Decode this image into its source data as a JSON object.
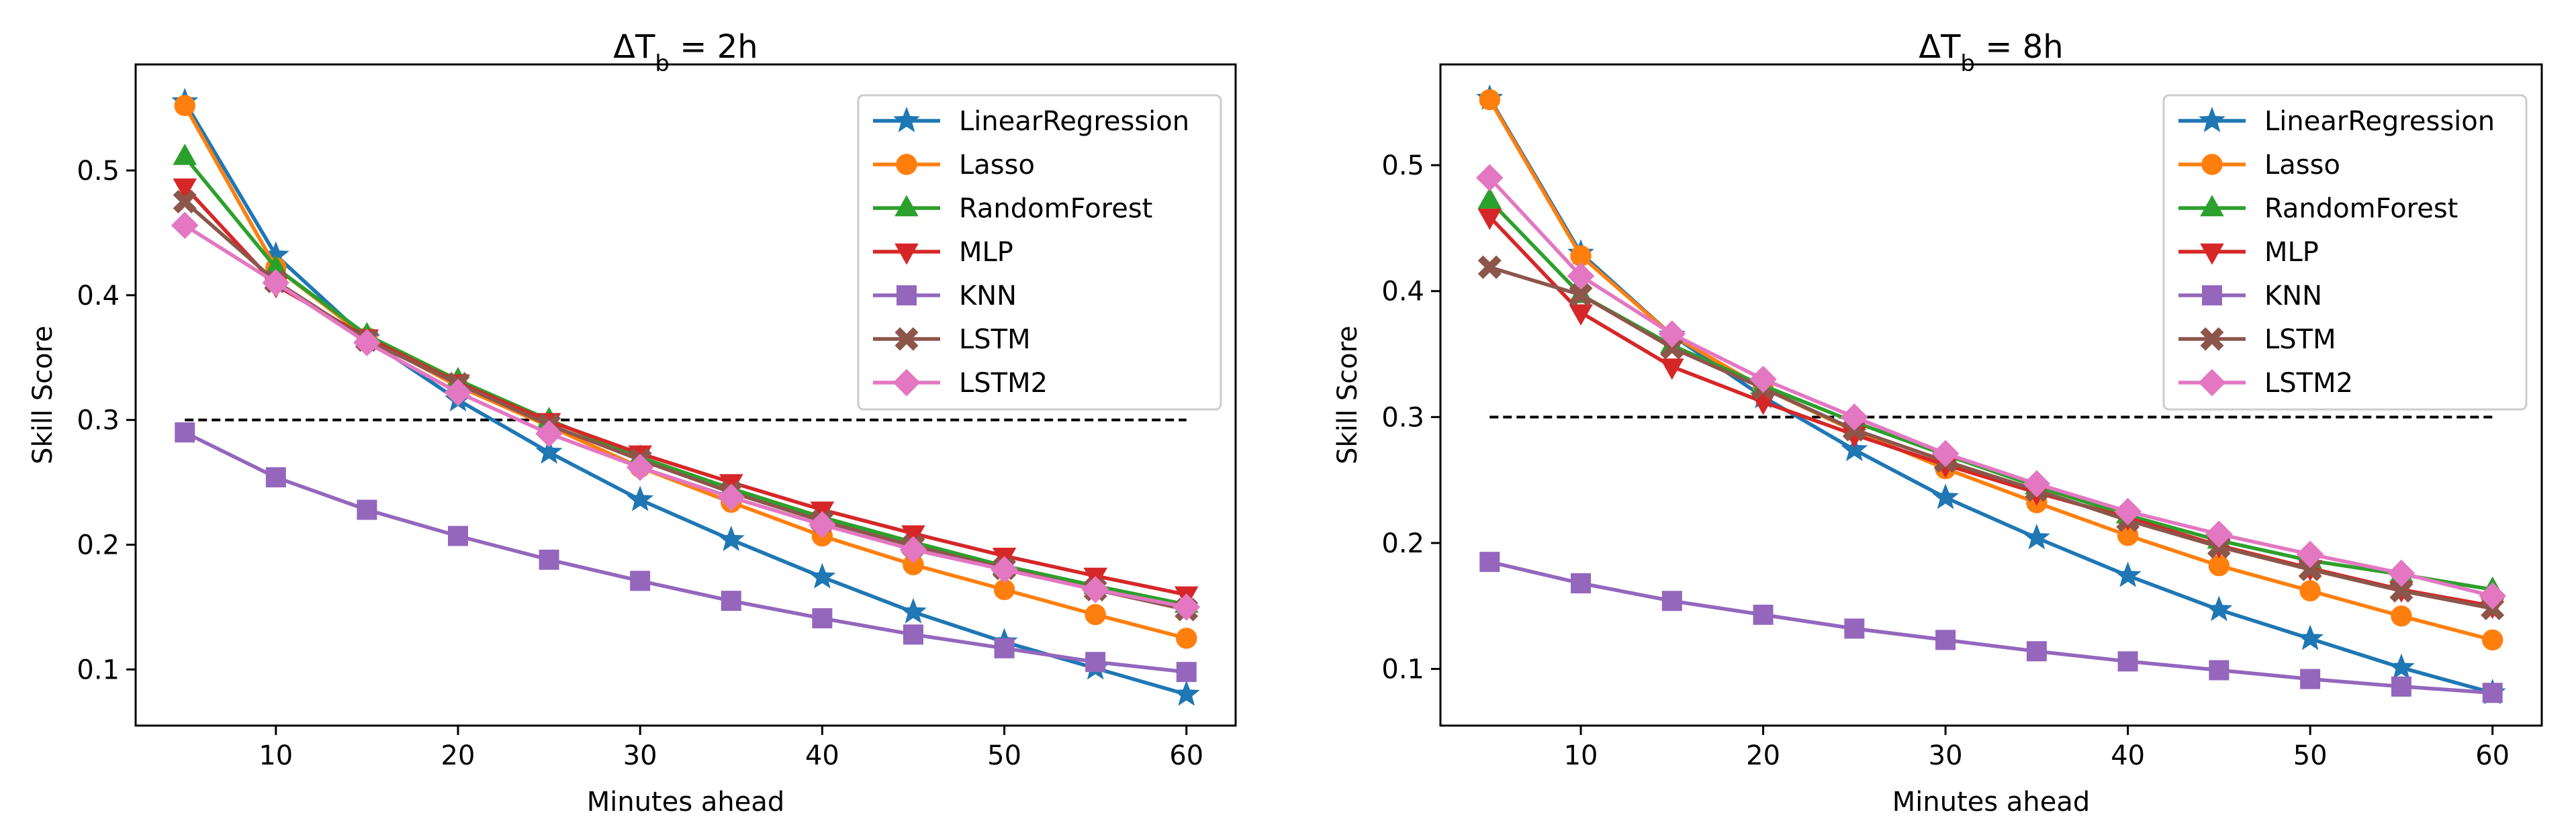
{
  "chart_data": [
    {
      "type": "line",
      "title": "ΔT_b = 2h",
      "title_main": "ΔT",
      "title_sub": "b",
      "title_rest": " = 2h",
      "xlabel": "Minutes ahead",
      "ylabel": "Skill Score",
      "xlim": [
        2.3,
        62.7
      ],
      "ylim": [
        0.055,
        0.585
      ],
      "xticks": [
        10,
        20,
        30,
        40,
        50,
        60
      ],
      "xtick_labels": [
        "10",
        "20",
        "30",
        "40",
        "50",
        "60"
      ],
      "yticks": [
        0.1,
        0.2,
        0.3,
        0.4,
        0.5
      ],
      "ytick_labels": [
        "0.1",
        "0.2",
        "0.3",
        "0.4",
        "0.5"
      ],
      "legend_position": "top-right",
      "reference_line": {
        "y": 0.3,
        "x_range": [
          5,
          60
        ],
        "style": "dashed"
      },
      "x": [
        5,
        10,
        15,
        20,
        25,
        30,
        35,
        40,
        45,
        50,
        55,
        60
      ],
      "series": [
        {
          "name": "LinearRegression",
          "color": "#1f77b4",
          "marker": "star",
          "values": [
            0.555,
            0.432,
            0.365,
            0.316,
            0.274,
            0.236,
            0.204,
            0.174,
            0.146,
            0.122,
            0.101,
            0.08
          ]
        },
        {
          "name": "Lasso",
          "color": "#ff7f0e",
          "marker": "circle",
          "values": [
            0.552,
            0.422,
            0.366,
            0.327,
            0.295,
            0.262,
            0.234,
            0.207,
            0.184,
            0.164,
            0.144,
            0.125
          ]
        },
        {
          "name": "RandomForest",
          "color": "#2ca02c",
          "marker": "triangle-up",
          "values": [
            0.511,
            0.422,
            0.368,
            0.332,
            0.3,
            0.27,
            0.245,
            0.222,
            0.202,
            0.183,
            0.167,
            0.152
          ]
        },
        {
          "name": "MLP",
          "color": "#d62728",
          "marker": "triangle-down",
          "values": [
            0.487,
            0.408,
            0.366,
            0.33,
            0.299,
            0.273,
            0.25,
            0.228,
            0.209,
            0.191,
            0.175,
            0.16
          ]
        },
        {
          "name": "KNN",
          "color": "#9467bd",
          "marker": "square",
          "values": [
            0.29,
            0.254,
            0.228,
            0.207,
            0.188,
            0.171,
            0.155,
            0.141,
            0.128,
            0.117,
            0.106,
            0.098
          ]
        },
        {
          "name": "LSTM",
          "color": "#8c564b",
          "marker": "x-filled",
          "values": [
            0.475,
            0.411,
            0.364,
            0.329,
            0.296,
            0.268,
            0.242,
            0.219,
            0.199,
            0.181,
            0.164,
            0.148
          ]
        },
        {
          "name": "LSTM2",
          "color": "#e377c2",
          "marker": "diamond",
          "values": [
            0.456,
            0.41,
            0.362,
            0.322,
            0.289,
            0.262,
            0.238,
            0.216,
            0.196,
            0.18,
            0.164,
            0.15
          ]
        }
      ]
    },
    {
      "type": "line",
      "title": "ΔT_b = 8h",
      "title_main": "ΔT",
      "title_sub": "b",
      "title_rest": " = 8h",
      "xlabel": "Minutes ahead",
      "ylabel": "Skill Score",
      "xlim": [
        2.3,
        62.7
      ],
      "ylim": [
        0.055,
        0.58
      ],
      "xticks": [
        10,
        20,
        30,
        40,
        50,
        60
      ],
      "xtick_labels": [
        "10",
        "20",
        "30",
        "40",
        "50",
        "60"
      ],
      "yticks": [
        0.1,
        0.2,
        0.3,
        0.4,
        0.5
      ],
      "ytick_labels": [
        "0.1",
        "0.2",
        "0.3",
        "0.4",
        "0.5"
      ],
      "legend_position": "top-right",
      "reference_line": {
        "y": 0.3,
        "x_range": [
          5,
          60
        ],
        "style": "dashed"
      },
      "x": [
        5,
        10,
        15,
        20,
        25,
        30,
        35,
        40,
        45,
        50,
        55,
        60
      ],
      "series": [
        {
          "name": "LinearRegression",
          "color": "#1f77b4",
          "marker": "star",
          "values": [
            0.553,
            0.43,
            0.365,
            0.316,
            0.274,
            0.236,
            0.204,
            0.174,
            0.147,
            0.124,
            0.101,
            0.081
          ]
        },
        {
          "name": "Lasso",
          "color": "#ff7f0e",
          "marker": "circle",
          "values": [
            0.552,
            0.428,
            0.365,
            0.323,
            0.289,
            0.259,
            0.232,
            0.206,
            0.182,
            0.162,
            0.142,
            0.123
          ]
        },
        {
          "name": "RandomForest",
          "color": "#2ca02c",
          "marker": "triangle-up",
          "values": [
            0.472,
            0.397,
            0.357,
            0.325,
            0.296,
            0.27,
            0.245,
            0.222,
            0.202,
            0.186,
            0.175,
            0.163
          ]
        },
        {
          "name": "MLP",
          "color": "#d62728",
          "marker": "triangle-down",
          "values": [
            0.459,
            0.383,
            0.34,
            0.312,
            0.286,
            0.262,
            0.24,
            0.22,
            0.198,
            0.18,
            0.163,
            0.15
          ]
        },
        {
          "name": "KNN",
          "color": "#9467bd",
          "marker": "square",
          "values": [
            0.185,
            0.168,
            0.154,
            0.143,
            0.132,
            0.123,
            0.114,
            0.106,
            0.099,
            0.092,
            0.086,
            0.081
          ]
        },
        {
          "name": "LSTM",
          "color": "#8c564b",
          "marker": "x-filled",
          "values": [
            0.419,
            0.397,
            0.355,
            0.323,
            0.29,
            0.265,
            0.242,
            0.218,
            0.197,
            0.179,
            0.162,
            0.148
          ]
        },
        {
          "name": "LSTM2",
          "color": "#e377c2",
          "marker": "diamond",
          "values": [
            0.49,
            0.412,
            0.366,
            0.33,
            0.3,
            0.271,
            0.247,
            0.225,
            0.207,
            0.191,
            0.176,
            0.158
          ]
        }
      ]
    }
  ]
}
